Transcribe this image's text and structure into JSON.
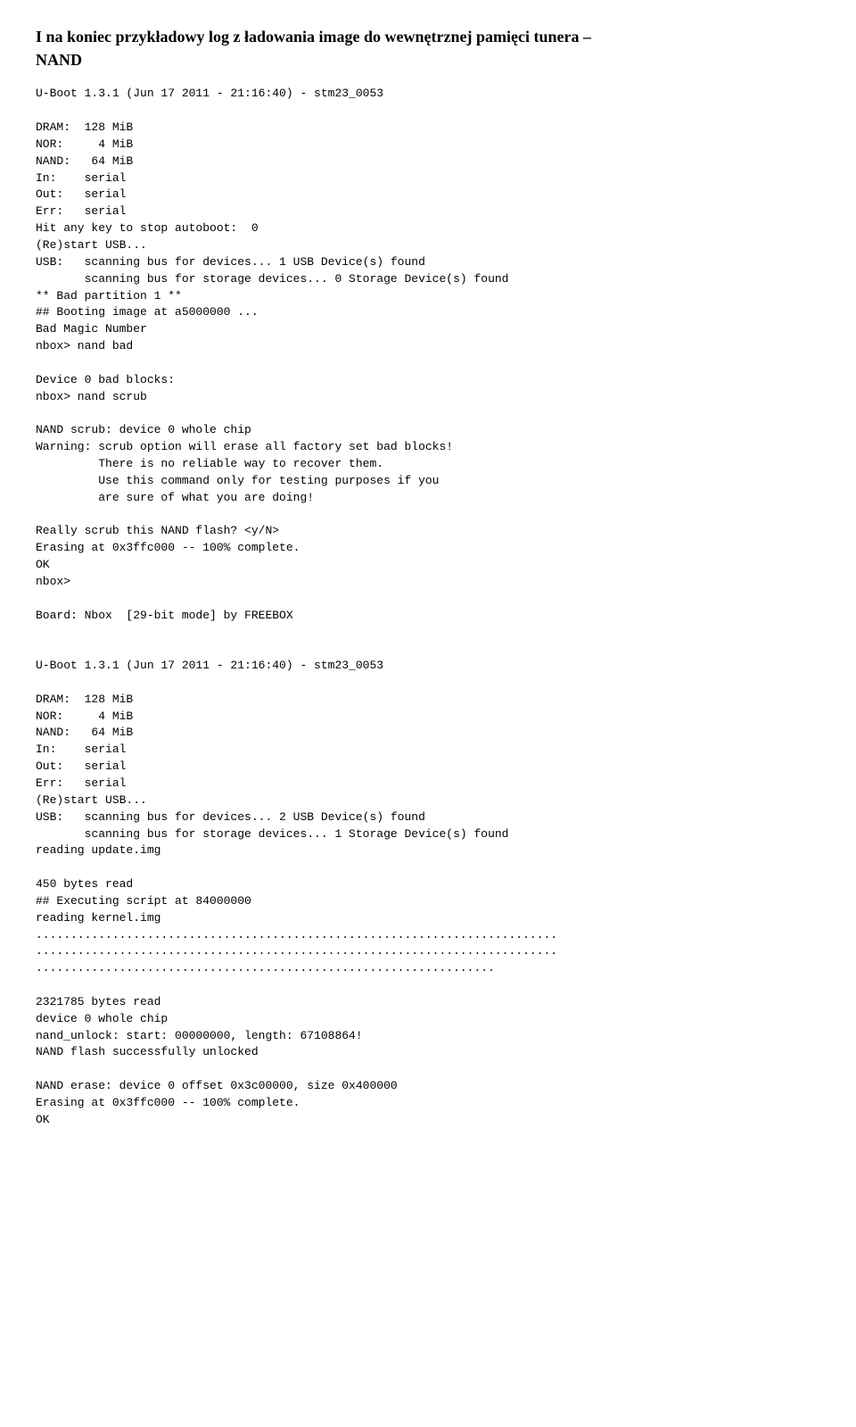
{
  "heading_line1": "I na koniec przykładowy log z ładowania image do wewnętrznej pamięci tunera –",
  "heading_line2": "NAND",
  "log_block1": "U-Boot 1.3.1 (Jun 17 2011 - 21:16:40) - stm23_0053\n\nDRAM:  128 MiB\nNOR:     4 MiB\nNAND:   64 MiB\nIn:    serial\nOut:   serial\nErr:   serial\nHit any key to stop autoboot:  0\n(Re)start USB...\nUSB:   scanning bus for devices... 1 USB Device(s) found\n       scanning bus for storage devices... 0 Storage Device(s) found\n** Bad partition 1 **\n## Booting image at a5000000 ...\nBad Magic Number\nnbox> nand bad\n\nDevice 0 bad blocks:\nnbox> nand scrub\n\nNAND scrub: device 0 whole chip\nWarning: scrub option will erase all factory set bad blocks!\n         There is no reliable way to recover them.\n         Use this command only for testing purposes if you\n         are sure of what you are doing!\n\nReally scrub this NAND flash? <y/N>\nErasing at 0x3ffc000 -- 100% complete.\nOK\nnbox>\n\nBoard: Nbox  [29-bit mode] by FREEBOX\n\n\nU-Boot 1.3.1 (Jun 17 2011 - 21:16:40) - stm23_0053\n\nDRAM:  128 MiB\nNOR:     4 MiB\nNAND:   64 MiB\nIn:    serial\nOut:   serial\nErr:   serial\n(Re)start USB...\nUSB:   scanning bus for devices... 2 USB Device(s) found\n       scanning bus for storage devices... 1 Storage Device(s) found\nreading update.img\n\n450 bytes read\n## Executing script at 84000000\nreading kernel.img\n...........................................................................\n...........................................................................\n..................................................................\n\n2321785 bytes read\ndevice 0 whole chip\nnand_unlock: start: 00000000, length: 67108864!\nNAND flash successfully unlocked\n\nNAND erase: device 0 offset 0x3c00000, size 0x400000\nErasing at 0x3ffc000 -- 100% complete.\nOK"
}
